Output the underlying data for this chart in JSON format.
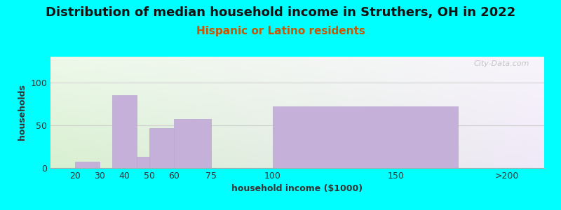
{
  "title": "Distribution of median household income in Struthers, OH in 2022",
  "subtitle": "Hispanic or Latino residents",
  "xlabel": "household income ($1000)",
  "ylabel": "households",
  "background_outer": "#00FFFF",
  "bar_color": "#c4b0d8",
  "bar_edge_color": "#b8a8d0",
  "ylim": [
    0,
    130
  ],
  "yticks": [
    0,
    50,
    100
  ],
  "title_fontsize": 13,
  "subtitle_fontsize": 11,
  "subtitle_color": "#cc5500",
  "axis_label_fontsize": 9,
  "tick_fontsize": 9,
  "watermark_text": "City-Data.com",
  "grid_color": "#d0d0d0",
  "bar_lefts": [
    20,
    30,
    35,
    45,
    50,
    60,
    75,
    100
  ],
  "bar_rights": [
    30,
    35,
    45,
    50,
    60,
    75,
    100,
    175
  ],
  "bar_values": [
    7,
    0,
    85,
    13,
    47,
    57,
    0,
    72
  ],
  "xtick_positions": [
    20,
    30,
    40,
    50,
    60,
    75,
    100,
    150
  ],
  "xtick_labels": [
    "20",
    "30",
    "40",
    "50",
    "60",
    "75",
    "100",
    "150"
  ],
  "x200_pos": 195,
  "x200_label": ">200",
  "xmin": 10,
  "xmax": 210
}
